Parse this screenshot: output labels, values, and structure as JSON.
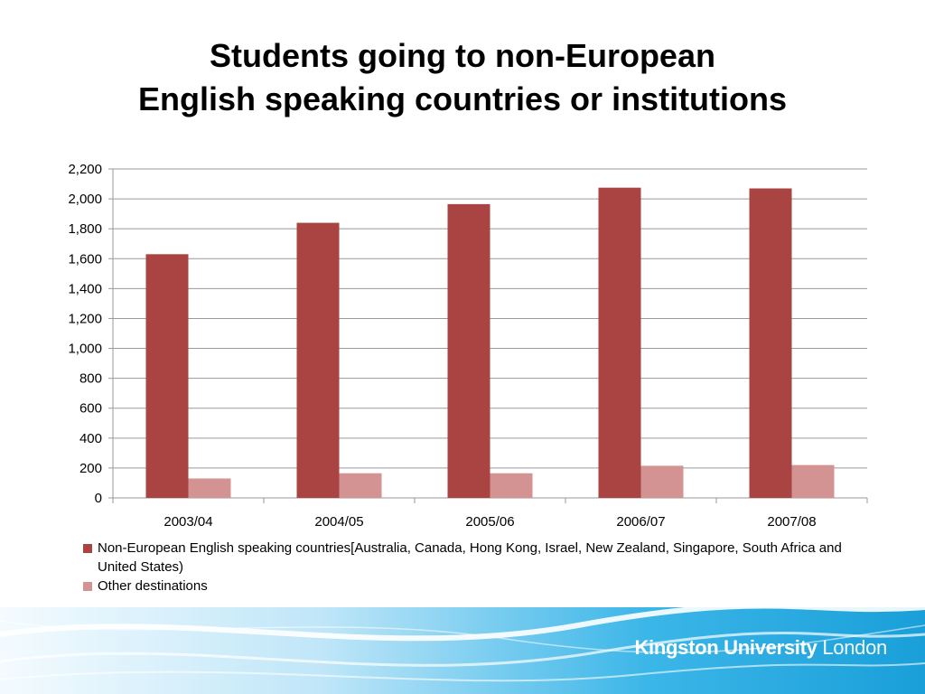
{
  "title_line1": "Students going to non-European",
  "title_line2": "English speaking countries or institutions",
  "chart_data": {
    "type": "bar",
    "categories": [
      "2003/04",
      "2004/05",
      "2005/06",
      "2006/07",
      "2007/08"
    ],
    "series": [
      {
        "name": "Non-European English speaking countries[Australia, Canada, Hong Kong, Israel, New Zealand, Singapore, South Africa and United States)",
        "values": [
          1630,
          1840,
          1965,
          2075,
          2070
        ],
        "color": "#a94442"
      },
      {
        "name": "Other destinations",
        "values": [
          130,
          165,
          165,
          215,
          220
        ],
        "color": "#d49393"
      }
    ],
    "ylim": [
      0,
      2200
    ],
    "yticks": [
      0,
      200,
      400,
      600,
      800,
      1000,
      1200,
      1400,
      1600,
      1800,
      2000,
      2200
    ],
    "ytick_labels": [
      "0",
      "200",
      "400",
      "600",
      "800",
      "1,000",
      "1,200",
      "1,400",
      "1,600",
      "1,800",
      "2,000",
      "2,200"
    ],
    "grid": true,
    "legend_position": "bottom"
  },
  "branding": {
    "logo_bold": "Kingston University",
    "logo_light": "London"
  }
}
